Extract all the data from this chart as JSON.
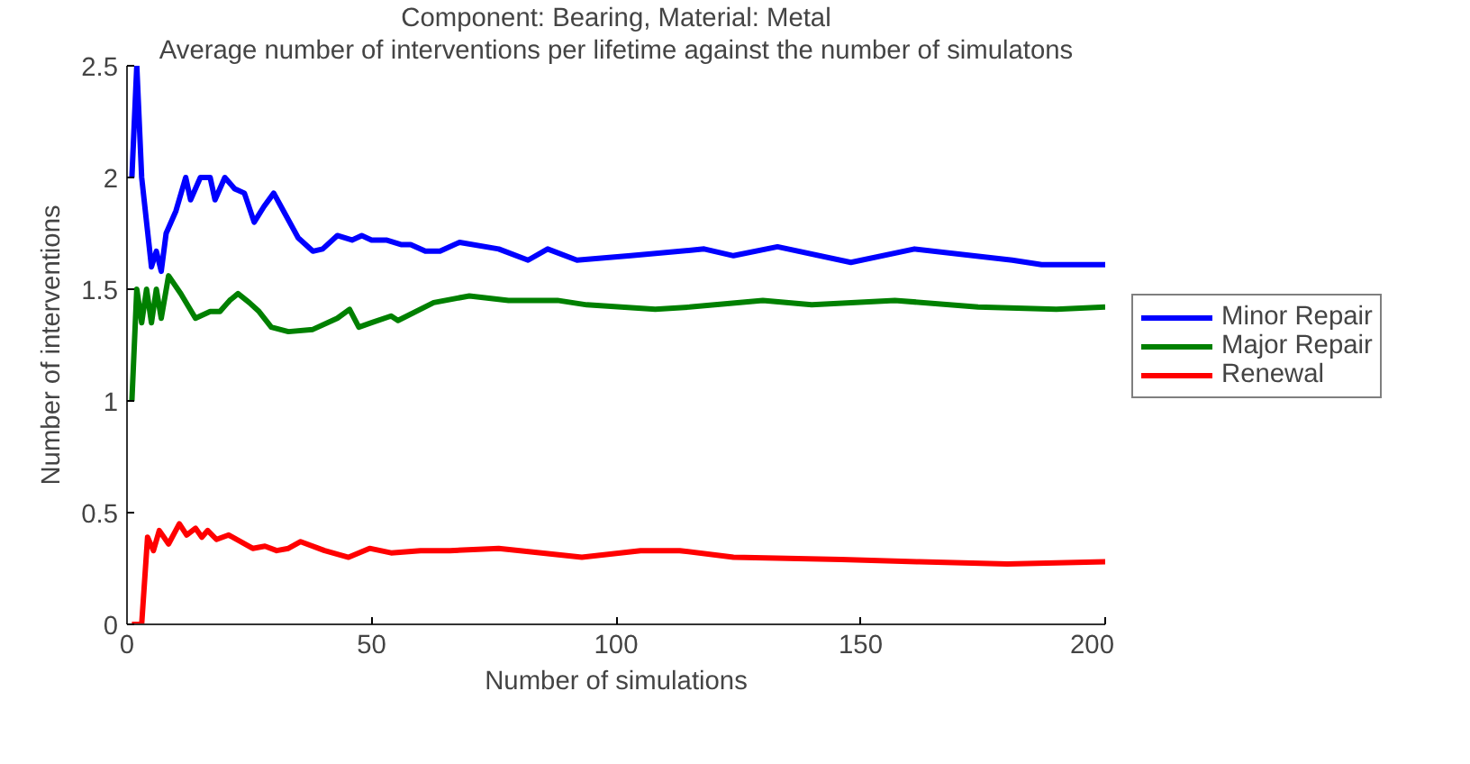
{
  "chart_data": {
    "type": "line",
    "title": "Component: Bearing, Material: Metal",
    "subtitle": "Average number of interventions per lifetime against the number of simulatons",
    "xlabel": "Number of simulations",
    "ylabel": "Number of interventions",
    "xlim": [
      0,
      200
    ],
    "ylim": [
      0,
      2.5
    ],
    "xticks": [
      0,
      50,
      100,
      150,
      200
    ],
    "yticks": [
      0,
      0.5,
      1,
      1.5,
      2,
      2.5
    ],
    "grid": false,
    "legend": "right",
    "marker": "none",
    "line_style": "solid",
    "series": [
      {
        "name": "Minor Repair",
        "color": "#0000ff",
        "x": [
          1,
          2,
          3,
          5,
          6,
          7,
          8,
          10,
          12,
          13,
          15,
          17,
          18,
          20,
          22,
          24,
          26,
          28,
          30,
          32,
          35,
          38,
          40,
          43,
          46,
          48,
          50,
          53,
          56,
          58,
          61,
          64,
          68,
          76,
          82,
          86,
          92,
          103,
          118,
          124,
          133,
          148,
          161,
          181,
          187,
          200
        ],
        "values": [
          2.0,
          2.5,
          2.0,
          1.6,
          1.67,
          1.58,
          1.75,
          1.85,
          2.0,
          1.9,
          2.0,
          2.0,
          1.9,
          2.0,
          1.95,
          1.93,
          1.8,
          1.87,
          1.93,
          1.85,
          1.73,
          1.67,
          1.68,
          1.74,
          1.72,
          1.74,
          1.72,
          1.72,
          1.7,
          1.7,
          1.67,
          1.67,
          1.71,
          1.68,
          1.63,
          1.68,
          1.63,
          1.65,
          1.68,
          1.65,
          1.69,
          1.62,
          1.68,
          1.63,
          1.61,
          1.61
        ]
      },
      {
        "name": "Major Repair",
        "color": "#008000",
        "x": [
          1,
          2,
          3,
          4,
          5,
          6,
          7,
          8.5,
          11,
          14,
          17,
          19,
          21,
          22.7,
          25,
          27,
          29.5,
          33,
          38,
          43,
          45.5,
          47.4,
          50,
          54,
          55.4,
          62.7,
          70,
          78,
          88,
          94,
          108,
          115,
          130,
          140,
          157,
          174,
          190,
          200
        ],
        "values": [
          1.0,
          1.5,
          1.35,
          1.5,
          1.35,
          1.5,
          1.37,
          1.56,
          1.48,
          1.37,
          1.4,
          1.4,
          1.45,
          1.48,
          1.44,
          1.4,
          1.33,
          1.31,
          1.32,
          1.37,
          1.41,
          1.33,
          1.35,
          1.38,
          1.36,
          1.44,
          1.47,
          1.45,
          1.45,
          1.43,
          1.41,
          1.42,
          1.45,
          1.43,
          1.45,
          1.42,
          1.41,
          1.42
        ]
      },
      {
        "name": "Renewal",
        "color": "#ff0000",
        "x": [
          1,
          3,
          4.2,
          5.4,
          6.6,
          8.5,
          10.7,
          12.2,
          14,
          15.3,
          16.5,
          18.3,
          20.8,
          25.7,
          28.2,
          30.6,
          33,
          35.5,
          40.4,
          45.3,
          49.6,
          54,
          60,
          66,
          76,
          93,
          105,
          113,
          124,
          146,
          162,
          180,
          200
        ],
        "values": [
          0,
          0,
          0.39,
          0.33,
          0.42,
          0.36,
          0.45,
          0.4,
          0.43,
          0.39,
          0.42,
          0.38,
          0.4,
          0.34,
          0.35,
          0.33,
          0.34,
          0.37,
          0.33,
          0.3,
          0.34,
          0.32,
          0.33,
          0.33,
          0.34,
          0.3,
          0.33,
          0.33,
          0.3,
          0.29,
          0.28,
          0.27,
          0.28
        ]
      }
    ]
  }
}
